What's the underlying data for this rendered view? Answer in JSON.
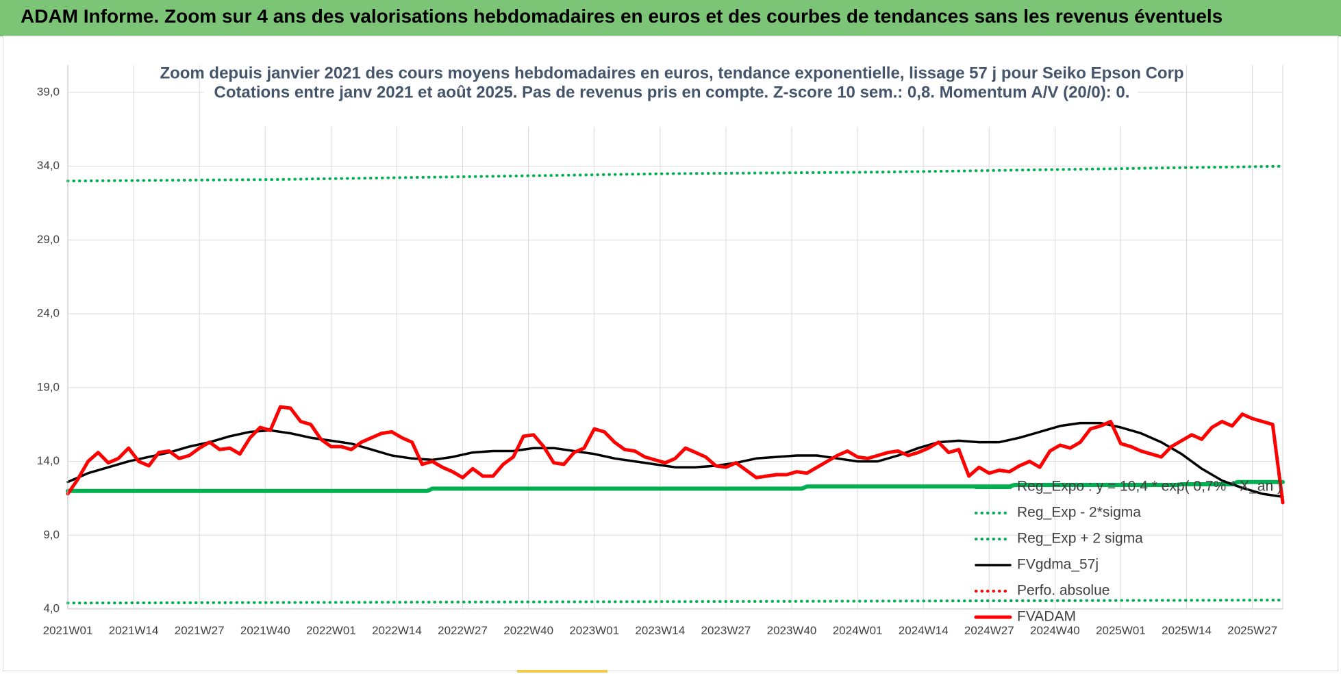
{
  "header": {
    "banner_title": "ADAM Informe. Zoom sur 4 ans des valorisations hebdomadaires en euros et des courbes de tendances sans les revenus éventuels"
  },
  "colors": {
    "banner_bg": "#7cc576",
    "title_text": "#44546a",
    "reg_expo": "#00b050",
    "fvgdma": "#000000",
    "fvadam": "#ff0000",
    "perfo": "#ff0000",
    "grid": "#d9d9d9"
  },
  "chart_data": {
    "type": "line",
    "title": "Zoom depuis janvier 2021 des cours moyens hebdomadaires en euros, tendance exponentielle, lissage 57 j pour Seiko Epson Corp",
    "subtitle": "Cotations entre janv 2021 et août 2025.  Pas de revenus pris en compte. Z-score 10 sem.: 0,8. Momentum A/V (20/0): 0.",
    "x_tick_labels": [
      "2021W01",
      "2021W14",
      "2021W27",
      "2021W40",
      "2022W01",
      "2022W14",
      "2022W27",
      "2022W40",
      "2023W01",
      "2023W14",
      "2023W27",
      "2023W40",
      "2024W01",
      "2024W14",
      "2024W27",
      "2024W40",
      "2025W01",
      "2025W14",
      "2025W27"
    ],
    "y_tick_labels": [
      "4,0",
      "9,0",
      "14,0",
      "19,0",
      "24,0",
      "29,0",
      "34,0",
      "39,0"
    ],
    "ylim": [
      4,
      39
    ],
    "x_range_weeks": [
      0,
      240
    ],
    "grid": true,
    "legend_position": "right-inside",
    "series": [
      {
        "name": "Reg_Expo : y = 10,4 * exp( 0,7% *  X_an )",
        "style": "solid-thick",
        "color": "#00b050",
        "points": [
          [
            0,
            12.0
          ],
          [
            71,
            12.0
          ],
          [
            72,
            12.15
          ],
          [
            145,
            12.15
          ],
          [
            146,
            12.3
          ],
          [
            186,
            12.3
          ],
          [
            187,
            12.4
          ],
          [
            219,
            12.4
          ],
          [
            220,
            12.45
          ],
          [
            230,
            12.45
          ],
          [
            231,
            12.6
          ],
          [
            240,
            12.6
          ]
        ]
      },
      {
        "name": "Reg_Exp - 2*sigma",
        "style": "dotted",
        "color": "#00b050",
        "points": [
          [
            0,
            4.4
          ],
          [
            240,
            4.6
          ]
        ]
      },
      {
        "name": "Reg_Exp + 2 sigma",
        "style": "dotted",
        "color": "#00b050",
        "points": [
          [
            0,
            33.0
          ],
          [
            40,
            33.1
          ],
          [
            80,
            33.3
          ],
          [
            120,
            33.5
          ],
          [
            160,
            33.6
          ],
          [
            200,
            33.8
          ],
          [
            240,
            34.0
          ]
        ]
      },
      {
        "name": "FVgdma_57j",
        "style": "solid",
        "color": "#000000",
        "points": [
          [
            0,
            12.6
          ],
          [
            4,
            13.2
          ],
          [
            8,
            13.6
          ],
          [
            12,
            14.0
          ],
          [
            16,
            14.3
          ],
          [
            20,
            14.6
          ],
          [
            24,
            15.0
          ],
          [
            28,
            15.3
          ],
          [
            32,
            15.7
          ],
          [
            36,
            16.0
          ],
          [
            40,
            16.1
          ],
          [
            44,
            15.9
          ],
          [
            48,
            15.6
          ],
          [
            52,
            15.4
          ],
          [
            56,
            15.2
          ],
          [
            60,
            14.8
          ],
          [
            64,
            14.4
          ],
          [
            68,
            14.2
          ],
          [
            72,
            14.1
          ],
          [
            76,
            14.3
          ],
          [
            80,
            14.6
          ],
          [
            84,
            14.7
          ],
          [
            88,
            14.7
          ],
          [
            92,
            14.9
          ],
          [
            96,
            14.9
          ],
          [
            100,
            14.7
          ],
          [
            104,
            14.5
          ],
          [
            108,
            14.2
          ],
          [
            112,
            14.0
          ],
          [
            116,
            13.8
          ],
          [
            120,
            13.6
          ],
          [
            124,
            13.6
          ],
          [
            128,
            13.7
          ],
          [
            132,
            13.9
          ],
          [
            136,
            14.2
          ],
          [
            140,
            14.3
          ],
          [
            144,
            14.4
          ],
          [
            148,
            14.4
          ],
          [
            152,
            14.2
          ],
          [
            156,
            14.0
          ],
          [
            160,
            14.0
          ],
          [
            164,
            14.4
          ],
          [
            168,
            14.9
          ],
          [
            172,
            15.3
          ],
          [
            176,
            15.4
          ],
          [
            180,
            15.3
          ],
          [
            184,
            15.3
          ],
          [
            188,
            15.6
          ],
          [
            192,
            16.0
          ],
          [
            196,
            16.4
          ],
          [
            200,
            16.6
          ],
          [
            204,
            16.6
          ],
          [
            208,
            16.3
          ],
          [
            212,
            15.9
          ],
          [
            216,
            15.3
          ],
          [
            220,
            14.5
          ],
          [
            224,
            13.5
          ],
          [
            228,
            12.7
          ],
          [
            232,
            12.2
          ],
          [
            236,
            11.8
          ],
          [
            240,
            11.6
          ]
        ]
      },
      {
        "name": "Perfo. absolue",
        "style": "dotted",
        "color": "#ff0000",
        "points": []
      },
      {
        "name": "FVADAM",
        "style": "solid-thick",
        "color": "#ff0000",
        "points": [
          [
            0,
            11.8
          ],
          [
            2,
            12.8
          ],
          [
            4,
            14.0
          ],
          [
            6,
            14.6
          ],
          [
            8,
            13.9
          ],
          [
            10,
            14.2
          ],
          [
            12,
            14.9
          ],
          [
            14,
            14.0
          ],
          [
            16,
            13.7
          ],
          [
            18,
            14.6
          ],
          [
            20,
            14.7
          ],
          [
            22,
            14.2
          ],
          [
            24,
            14.4
          ],
          [
            26,
            14.9
          ],
          [
            28,
            15.3
          ],
          [
            30,
            14.8
          ],
          [
            32,
            14.9
          ],
          [
            34,
            14.5
          ],
          [
            36,
            15.6
          ],
          [
            38,
            16.3
          ],
          [
            40,
            16.1
          ],
          [
            42,
            17.7
          ],
          [
            44,
            17.6
          ],
          [
            46,
            16.7
          ],
          [
            48,
            16.5
          ],
          [
            50,
            15.5
          ],
          [
            52,
            15.0
          ],
          [
            54,
            15.0
          ],
          [
            56,
            14.8
          ],
          [
            58,
            15.3
          ],
          [
            60,
            15.6
          ],
          [
            62,
            15.9
          ],
          [
            64,
            16.0
          ],
          [
            66,
            15.6
          ],
          [
            68,
            15.3
          ],
          [
            70,
            13.8
          ],
          [
            72,
            14.0
          ],
          [
            74,
            13.6
          ],
          [
            76,
            13.3
          ],
          [
            78,
            12.9
          ],
          [
            80,
            13.5
          ],
          [
            82,
            13.0
          ],
          [
            84,
            13.0
          ],
          [
            86,
            13.8
          ],
          [
            88,
            14.3
          ],
          [
            90,
            15.7
          ],
          [
            92,
            15.8
          ],
          [
            94,
            15.0
          ],
          [
            96,
            13.9
          ],
          [
            98,
            13.8
          ],
          [
            100,
            14.6
          ],
          [
            102,
            14.9
          ],
          [
            104,
            16.2
          ],
          [
            106,
            16.0
          ],
          [
            108,
            15.3
          ],
          [
            110,
            14.8
          ],
          [
            112,
            14.7
          ],
          [
            114,
            14.3
          ],
          [
            116,
            14.1
          ],
          [
            118,
            13.9
          ],
          [
            120,
            14.2
          ],
          [
            122,
            14.9
          ],
          [
            124,
            14.6
          ],
          [
            126,
            14.3
          ],
          [
            128,
            13.7
          ],
          [
            130,
            13.6
          ],
          [
            132,
            13.9
          ],
          [
            134,
            13.4
          ],
          [
            136,
            12.9
          ],
          [
            138,
            13.0
          ],
          [
            140,
            13.1
          ],
          [
            142,
            13.1
          ],
          [
            144,
            13.3
          ],
          [
            146,
            13.2
          ],
          [
            148,
            13.6
          ],
          [
            150,
            14.0
          ],
          [
            152,
            14.4
          ],
          [
            154,
            14.7
          ],
          [
            156,
            14.3
          ],
          [
            158,
            14.2
          ],
          [
            160,
            14.4
          ],
          [
            162,
            14.6
          ],
          [
            164,
            14.7
          ],
          [
            166,
            14.4
          ],
          [
            168,
            14.6
          ],
          [
            170,
            14.9
          ],
          [
            172,
            15.3
          ],
          [
            174,
            14.6
          ],
          [
            176,
            14.8
          ],
          [
            178,
            13.0
          ],
          [
            180,
            13.6
          ],
          [
            182,
            13.2
          ],
          [
            184,
            13.4
          ],
          [
            186,
            13.3
          ],
          [
            188,
            13.7
          ],
          [
            190,
            14.0
          ],
          [
            192,
            13.6
          ],
          [
            194,
            14.7
          ],
          [
            196,
            15.1
          ],
          [
            198,
            14.9
          ],
          [
            200,
            15.3
          ],
          [
            202,
            16.2
          ],
          [
            204,
            16.4
          ],
          [
            206,
            16.7
          ],
          [
            208,
            15.2
          ],
          [
            210,
            15.0
          ],
          [
            212,
            14.7
          ],
          [
            214,
            14.5
          ],
          [
            216,
            14.3
          ],
          [
            218,
            15.0
          ],
          [
            220,
            15.4
          ],
          [
            222,
            15.8
          ],
          [
            224,
            15.5
          ],
          [
            226,
            16.3
          ],
          [
            228,
            16.7
          ],
          [
            230,
            16.4
          ],
          [
            232,
            17.2
          ],
          [
            234,
            16.9
          ],
          [
            236,
            16.7
          ],
          [
            238,
            16.5
          ],
          [
            240,
            11.2
          ]
        ]
      }
    ]
  }
}
